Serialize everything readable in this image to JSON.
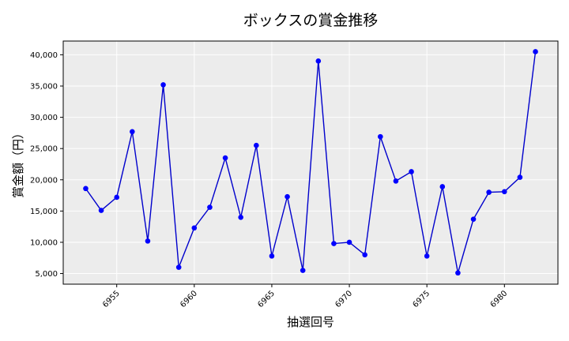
{
  "chart_data": {
    "type": "line",
    "title": "ボックスの賞金推移",
    "xlabel": "抽選回号",
    "ylabel": "賞金額（円）",
    "xlim": [
      6951.55,
      6983.45
    ],
    "ylim": [
      3300,
      42200
    ],
    "xticks": [
      6955,
      6960,
      6965,
      6970,
      6975,
      6980
    ],
    "xtick_labels": [
      "6955",
      "6960",
      "6965",
      "6970",
      "6975",
      "6980"
    ],
    "yticks": [
      5000,
      10000,
      15000,
      20000,
      25000,
      30000,
      35000,
      40000
    ],
    "ytick_labels": [
      "5,000",
      "10,000",
      "15,000",
      "20,000",
      "25,000",
      "30,000",
      "35,000",
      "40,000"
    ],
    "grid": true,
    "colors": {
      "line": "#0000cc",
      "marker": "#0000ff",
      "plot_bg": "#ececec",
      "grid": "#ffffff"
    },
    "series": [
      {
        "x": [
          6953,
          6954,
          6955,
          6956,
          6957,
          6958,
          6959,
          6960,
          6961,
          6962,
          6963,
          6964,
          6965,
          6966,
          6967,
          6968,
          6969,
          6970,
          6971,
          6972,
          6973,
          6974,
          6975,
          6976,
          6977,
          6978,
          6979,
          6980,
          6981,
          6982
        ],
        "values": [
          18600,
          15100,
          17200,
          27700,
          10200,
          35200,
          6000,
          12300,
          15600,
          23500,
          14000,
          25500,
          7800,
          17300,
          5500,
          39000,
          9800,
          10000,
          8000,
          26900,
          19800,
          21300,
          7800,
          18900,
          5100,
          13700,
          18000,
          18100,
          20400,
          40500
        ]
      }
    ]
  }
}
